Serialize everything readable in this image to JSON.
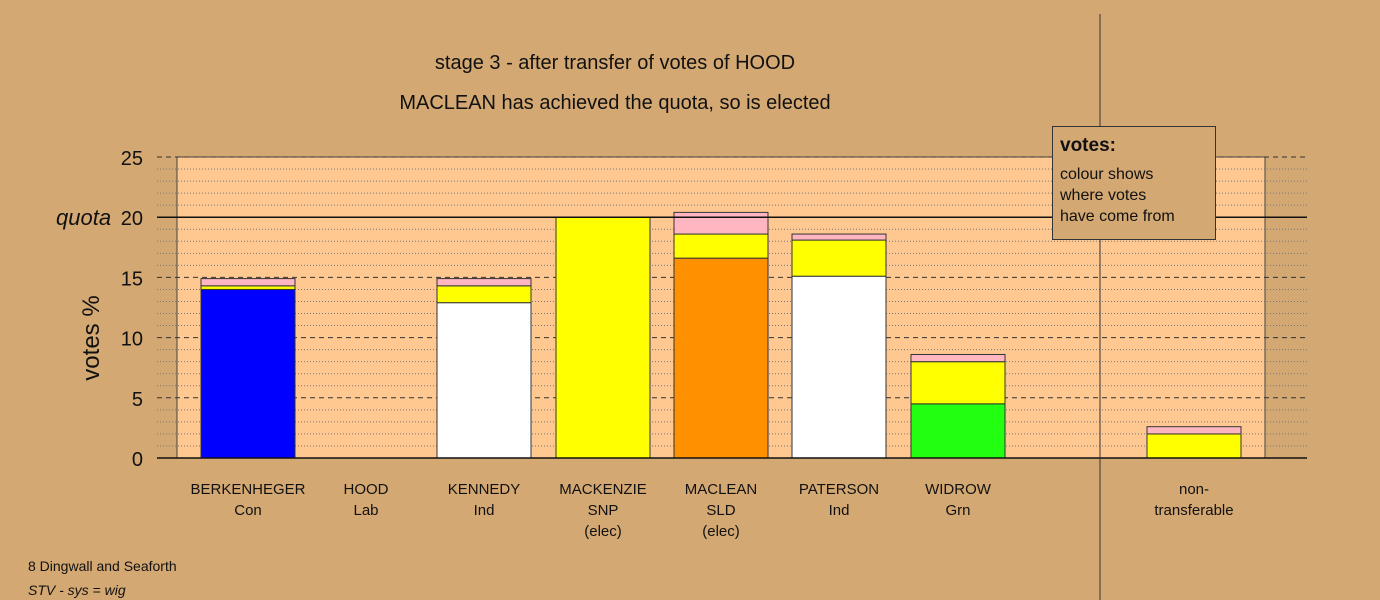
{
  "chart_data": {
    "type": "bar",
    "stacked": true,
    "title": "stage 3 - after transfer of votes of HOOD",
    "subtitle": "MACLEAN has achieved the quota, so is elected",
    "ylabel": "votes %",
    "quota_label": "quota",
    "quota": 20,
    "ylim": [
      0,
      25
    ],
    "yticks": [
      0,
      5,
      10,
      15,
      20,
      25
    ],
    "categories": [
      {
        "name": "BERKENHEGER",
        "party": "Con",
        "note": ""
      },
      {
        "name": "HOOD",
        "party": "Lab",
        "note": ""
      },
      {
        "name": "KENNEDY",
        "party": "Ind",
        "note": ""
      },
      {
        "name": "MACKENZIE",
        "party": "SNP",
        "note": "(elec)"
      },
      {
        "name": "MACLEAN",
        "party": "SLD",
        "note": "(elec)"
      },
      {
        "name": "PATERSON",
        "party": "Ind",
        "note": ""
      },
      {
        "name": "WIDROW",
        "party": "Grn",
        "note": ""
      },
      {
        "name": "non-",
        "party": "transferable",
        "note": ""
      }
    ],
    "segments": [
      [
        {
          "value": 14.0,
          "color": "#0000ff"
        },
        {
          "value": 0.3,
          "color": "#ffff00"
        },
        {
          "value": 0.6,
          "color": "#ffb6c1"
        }
      ],
      [],
      [
        {
          "value": 12.9,
          "color": "#ffffff"
        },
        {
          "value": 1.4,
          "color": "#ffff00"
        },
        {
          "value": 0.6,
          "color": "#ffb6c1"
        }
      ],
      [
        {
          "value": 20.0,
          "color": "#ffff00"
        }
      ],
      [
        {
          "value": 16.6,
          "color": "#ff9100"
        },
        {
          "value": 2.0,
          "color": "#ffff00"
        },
        {
          "value": 1.8,
          "color": "#ffb6c1"
        }
      ],
      [
        {
          "value": 15.1,
          "color": "#ffffff"
        },
        {
          "value": 3.0,
          "color": "#ffff00"
        },
        {
          "value": 0.5,
          "color": "#ffb6c1"
        }
      ],
      [
        {
          "value": 4.5,
          "color": "#22ff11"
        },
        {
          "value": 3.5,
          "color": "#ffff00"
        },
        {
          "value": 0.6,
          "color": "#ffb6c1"
        }
      ],
      [
        {
          "value": 2.0,
          "color": "#ffff00"
        },
        {
          "value": 0.6,
          "color": "#ffb6c1"
        }
      ]
    ]
  },
  "legend": {
    "title": "votes:",
    "lines": [
      "colour shows",
      "where votes",
      "have come from"
    ]
  },
  "footer": {
    "line1": "8 Dingwall and Seaforth",
    "line2": "STV - sys = wig"
  },
  "colors": {
    "background": "#d4a873",
    "plot_area": "#ffc890"
  }
}
